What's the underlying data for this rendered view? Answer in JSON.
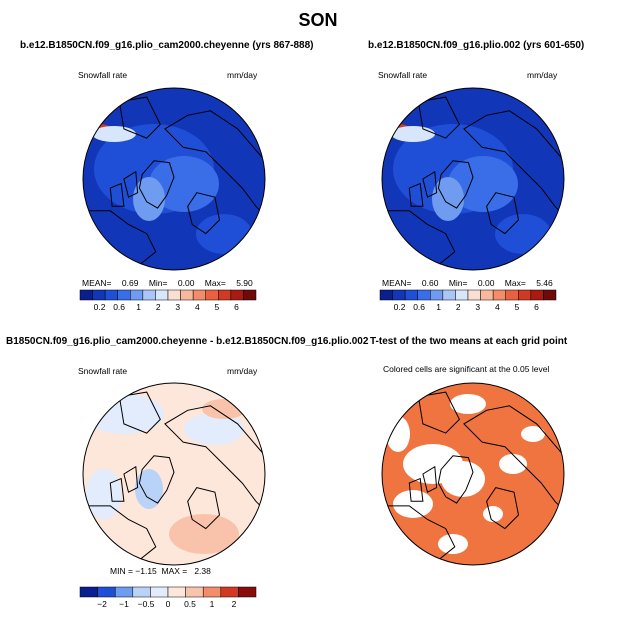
{
  "title": "SON",
  "panels": [
    {
      "title": "b.e12.B1850CN.f09_g16.plio_cam2000.cheyenne (yrs 867-888)",
      "left_label": "Snowfall rate",
      "right_label": "mm/day",
      "stats": {
        "mean_label": "MEAN=",
        "mean": "0.69",
        "min_label": "Min=",
        "min": "0.00",
        "max_label": "Max=",
        "max": "5.90"
      },
      "colorbar_ticks": [
        "0.2",
        "0.6",
        "1",
        "2",
        "3",
        "4",
        "5",
        "6"
      ]
    },
    {
      "title": "b.e12.B1850CN.f09_g16.plio.002 (yrs 601-650)",
      "left_label": "Snowfall rate",
      "right_label": "mm/day",
      "stats": {
        "mean_label": "MEAN=",
        "mean": "0.60",
        "min_label": "Min=",
        "min": "0.00",
        "max_label": "Max=",
        "max": "5.46"
      },
      "colorbar_ticks": [
        "0.2",
        "0.6",
        "1",
        "2",
        "3",
        "4",
        "5",
        "6"
      ]
    },
    {
      "title": "B1850CN.f09_g16.plio_cam2000.cheyenne - b.e12.B1850CN.f09_g16.plio.002",
      "left_label": "Snowfall rate",
      "right_label": "mm/day",
      "stats_text": "MIN = −1.15  MAX =   2.38",
      "colorbar_ticks": [
        "−2",
        "−1",
        "−0.5",
        "0",
        "0.5",
        "1",
        "2"
      ]
    },
    {
      "title": "T-test of the two means at each grid point",
      "subtitle": "Colored cells are significant at the 0.05 level"
    }
  ],
  "colors": {
    "seq_scale": [
      "#0a1f8f",
      "#1236b8",
      "#1f4fd6",
      "#3a6ee8",
      "#6f9bf0",
      "#a9c6f7",
      "#d8e6fb",
      "#fbe0d2",
      "#f7b89e",
      "#f28c6a",
      "#e8623f",
      "#d13a22",
      "#a81a12",
      "#6e0a0a"
    ],
    "div_scale": [
      "#0a1f8f",
      "#1f4fd6",
      "#6f9bf0",
      "#b9d2f8",
      "#e2ecfc",
      "#fde6da",
      "#f9c3ab",
      "#f28c6a",
      "#d13a22",
      "#8a0c0c"
    ],
    "ttest": "#ef7440"
  }
}
